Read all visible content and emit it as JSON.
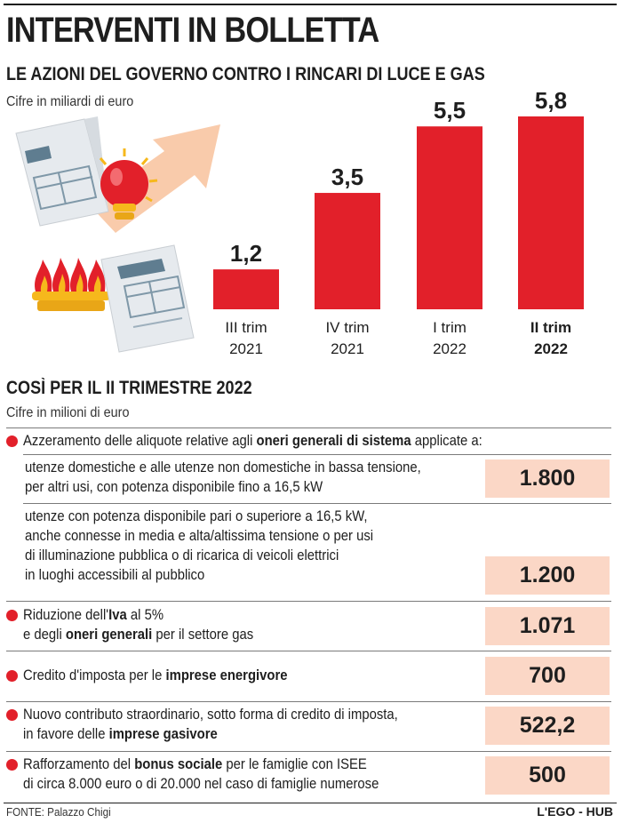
{
  "title": "INTERVENTI IN BOLLETTA",
  "subtitle": "LE AZIONI DEL GOVERNO CONTRO I RINCARI DI LUCE E GAS",
  "chart_unit": "Cifre in miliardi di euro",
  "chart_data": {
    "type": "bar",
    "title": "LE AZIONI DEL GOVERNO CONTRO I RINCARI DI LUCE E GAS",
    "ylabel": "Cifre in miliardi di euro",
    "xlabel": "",
    "categories": [
      {
        "line1": "III trim",
        "line2": "2021"
      },
      {
        "line1": "IV trim",
        "line2": "2021"
      },
      {
        "line1": "I trim",
        "line2": "2022"
      },
      {
        "line1": "II trim",
        "line2": "2022"
      }
    ],
    "values": [
      1.2,
      3.5,
      5.5,
      5.8
    ],
    "value_labels": [
      "1,2",
      "3,5",
      "5,5",
      "5,8"
    ],
    "highlight_index": 3,
    "ylim": [
      0,
      5.8
    ],
    "grid": false,
    "bar_color": "#e2202a"
  },
  "illustration": {
    "icons": [
      "bill-icon",
      "light-bulb-icon",
      "rising-arrow-icon",
      "gas-flame-icon"
    ],
    "colors": {
      "red": "#e2202a",
      "orange": "#f5a05a",
      "yellow": "#f6b81c",
      "paper": "#e8ecef",
      "blue": "#5f7d90"
    }
  },
  "section": {
    "title": "COSÌ PER IL II TRIMESTRE 2022",
    "unit": "Cifre in milioni di euro"
  },
  "items": {
    "azzeramento": {
      "p1": "Azzeramento delle aliquote relative agli ",
      "b1": "oneri generali di sistema",
      "p2": " applicate a:",
      "sub1": {
        "line1": "utenze domestiche e alle utenze non domestiche in bassa tensione,",
        "line2": "per altri usi, con potenza disponibile fino a 16,5 kW",
        "value": "1.800"
      },
      "sub2": {
        "line1": "utenze con potenza disponibile pari o superiore a 16,5 kW,",
        "line2": "anche connesse in media e alta/altissima tensione o per usi",
        "line3": "di illuminazione pubblica o di ricarica di veicoli elettrici",
        "line4": "in luoghi accessibili al pubblico",
        "value": "1.200"
      }
    },
    "iva": {
      "p1": "Riduzione dell'",
      "b1": "Iva",
      "p2": " al 5%",
      "l2p1": "e degli ",
      "l2b1": "oneri generali",
      "l2p2": " per il settore gas",
      "value": "1.071"
    },
    "credito": {
      "p1": "Credito d'imposta per le ",
      "b1": "imprese energivore",
      "value": "700"
    },
    "contributo": {
      "line1": "Nuovo contributo straordinario, sotto forma di credito di imposta,",
      "l2p1": "in favore delle ",
      "l2b1": "imprese gasivore",
      "value": "522,2"
    },
    "bonus": {
      "p1": "Rafforzamento del ",
      "b1": "bonus sociale",
      "p2": " per le famiglie con ISEE",
      "line2": "di circa 8.000 euro o di 20.000 nel caso di famiglie numerose",
      "value": "500"
    }
  },
  "footer": {
    "source": "FONTE: Palazzo Chigi",
    "credit": "L'EGO - HUB"
  }
}
